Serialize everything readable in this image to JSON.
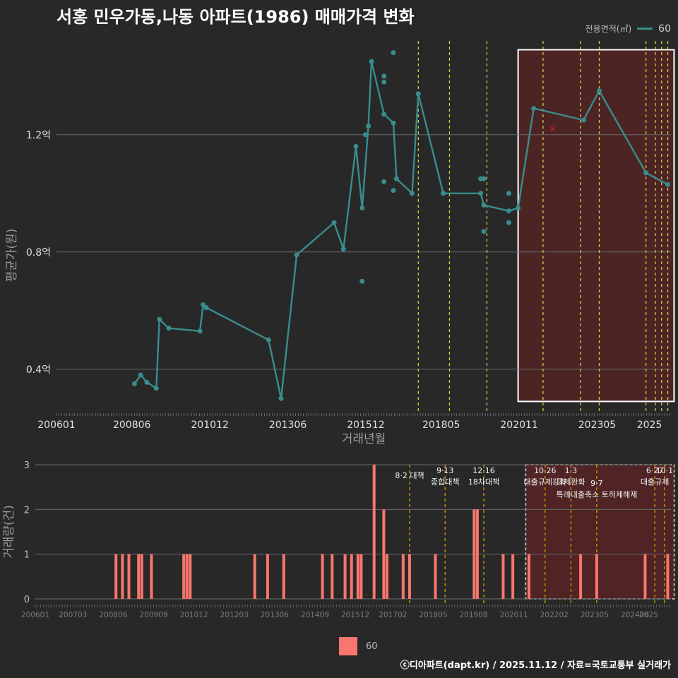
{
  "title": "서홍 민우가동,나동 아파트(1986) 매매가격 변화",
  "legend": {
    "title": "전용면적(㎡)",
    "series_label": "60"
  },
  "bottom_legend_label": "60",
  "footer": "ⓒ디아파트(dapt.kr) / 2025.11.12 / 자료=국토교통부 실거래가",
  "colors": {
    "line": "#3a8c8c",
    "bar": "#f8766d",
    "vline": "#e6d84a",
    "vline2": "#e6a800",
    "band": "#5a2323"
  },
  "chart_data": [
    {
      "type": "line",
      "name": "price",
      "ylabel": "평균가(원)",
      "xlabel": "거래년월",
      "x_ticks": [
        "200601",
        "200806",
        "201012",
        "201306",
        "201512",
        "201805",
        "202011",
        "202305",
        "2025"
      ],
      "y_ticks": [
        "0.4억",
        "0.8억",
        "1.2억"
      ],
      "y_tick_values": [
        0.4,
        0.8,
        1.2
      ],
      "ylim": [
        0.25,
        1.52
      ],
      "xlim": [
        2006.0,
        2025.7
      ],
      "line": [
        [
          2008.5,
          0.35
        ],
        [
          2008.7,
          0.38
        ],
        [
          2008.9,
          0.355
        ],
        [
          2009.2,
          0.335
        ],
        [
          2009.3,
          0.57
        ],
        [
          2009.6,
          0.54
        ],
        [
          2010.6,
          0.53
        ],
        [
          2010.7,
          0.62
        ],
        [
          2010.8,
          0.61
        ],
        [
          2012.8,
          0.5
        ],
        [
          2013.2,
          0.3
        ],
        [
          2013.7,
          0.79
        ],
        [
          2014.9,
          0.9
        ],
        [
          2015.2,
          0.81
        ],
        [
          2015.6,
          1.16
        ],
        [
          2015.8,
          0.95
        ],
        [
          2016.0,
          1.23
        ],
        [
          2016.1,
          1.45
        ],
        [
          2016.5,
          1.27
        ],
        [
          2016.8,
          1.24
        ],
        [
          2016.9,
          1.05
        ],
        [
          2017.4,
          1.0
        ],
        [
          2017.6,
          1.34
        ],
        [
          2018.4,
          1.0
        ],
        [
          2019.6,
          1.0
        ],
        [
          2019.7,
          0.96
        ],
        [
          2020.5,
          0.94
        ],
        [
          2020.8,
          0.95
        ],
        [
          2021.3,
          1.29
        ],
        [
          2022.9,
          1.25
        ],
        [
          2023.4,
          1.35
        ],
        [
          2024.9,
          1.07
        ],
        [
          2025.6,
          1.03
        ]
      ],
      "extra_points": [
        [
          2016.8,
          1.48
        ],
        [
          2016.5,
          1.4
        ],
        [
          2016.5,
          1.38
        ],
        [
          2015.9,
          1.2
        ],
        [
          2016.5,
          1.04
        ],
        [
          2016.8,
          1.01
        ],
        [
          2015.8,
          0.7
        ],
        [
          2019.6,
          1.05
        ],
        [
          2019.7,
          1.05
        ],
        [
          2019.7,
          0.87
        ],
        [
          2020.5,
          0.9
        ],
        [
          2020.5,
          1.0
        ]
      ],
      "cross_point": [
        2021.9,
        1.22
      ],
      "vlines": [
        2017.6,
        2018.6,
        2019.8,
        2021.6,
        2022.8,
        2023.4,
        2024.9,
        2025.2,
        2025.4,
        2025.6
      ],
      "highlight": {
        "x_start": 2020.8,
        "x_end": 2025.8,
        "y_start": 0.29,
        "y_end": 1.49
      }
    },
    {
      "type": "bar",
      "name": "volume",
      "ylabel": "거래량(건)",
      "x_ticks": [
        "200601",
        "200703",
        "200806",
        "200909",
        "201012",
        "201203",
        "201306",
        "201409",
        "201512",
        "201702",
        "201805",
        "201908",
        "202011",
        "202202",
        "202305",
        "202408",
        "2025"
      ],
      "y_ticks": [
        "0",
        "1",
        "2",
        "3"
      ],
      "ylim": [
        0,
        3
      ],
      "xlim": [
        2006.0,
        2025.7
      ],
      "bars": [
        [
          2008.5,
          1
        ],
        [
          2008.7,
          1
        ],
        [
          2008.9,
          1
        ],
        [
          2009.2,
          1
        ],
        [
          2009.3,
          1
        ],
        [
          2009.6,
          1
        ],
        [
          2010.6,
          1
        ],
        [
          2010.7,
          1
        ],
        [
          2010.8,
          1
        ],
        [
          2012.8,
          1
        ],
        [
          2013.2,
          1
        ],
        [
          2013.7,
          1
        ],
        [
          2014.9,
          1
        ],
        [
          2015.2,
          1
        ],
        [
          2015.6,
          1
        ],
        [
          2015.8,
          1
        ],
        [
          2016.0,
          1
        ],
        [
          2016.1,
          1
        ],
        [
          2016.5,
          3
        ],
        [
          2016.8,
          2
        ],
        [
          2016.9,
          1
        ],
        [
          2017.4,
          1
        ],
        [
          2017.6,
          1
        ],
        [
          2018.4,
          1
        ],
        [
          2019.6,
          2
        ],
        [
          2019.7,
          2
        ],
        [
          2020.5,
          1
        ],
        [
          2020.8,
          1
        ],
        [
          2021.3,
          1
        ],
        [
          2022.9,
          1
        ],
        [
          2023.4,
          1
        ],
        [
          2024.9,
          1
        ],
        [
          2025.6,
          1
        ]
      ],
      "policies": [
        {
          "x": 2017.6,
          "date": "8·2 대책",
          "label": ""
        },
        {
          "x": 2018.7,
          "date": "9·13",
          "label": "종합대책"
        },
        {
          "x": 2019.9,
          "date": "12·16",
          "label": "18차대책"
        },
        {
          "x": 2021.8,
          "date": "10·26",
          "label": "대출규제강화"
        },
        {
          "x": 2022.6,
          "date": "1·3",
          "label": "규제완화"
        },
        {
          "x": 2023.4,
          "date": "9·7",
          "label": "특례대출축소 토허제해제"
        },
        {
          "x": 2025.2,
          "date": "6·27",
          "label": "대출규제"
        },
        {
          "x": 2025.5,
          "date": "10·1",
          "label": ""
        }
      ],
      "highlight": {
        "x_start": 2021.2,
        "x_end": 2025.8
      }
    }
  ]
}
